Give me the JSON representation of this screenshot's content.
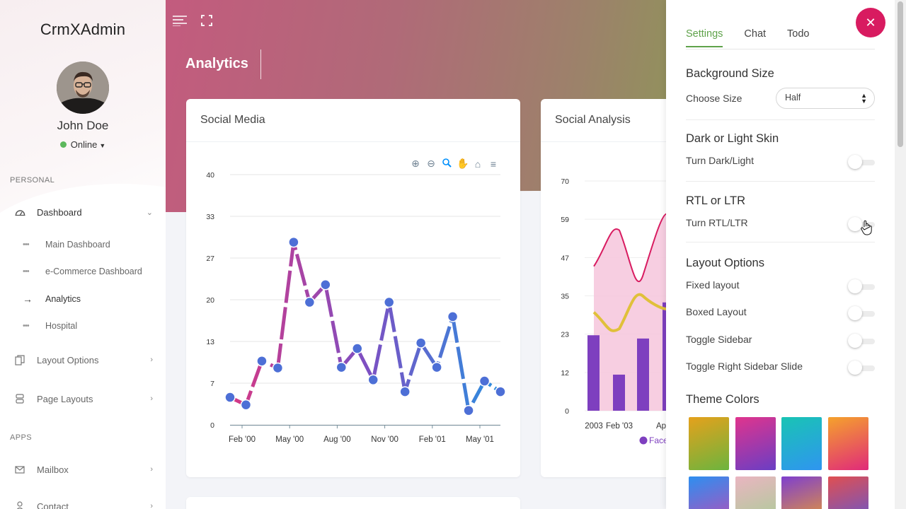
{
  "app": {
    "brand": "CrmXAdmin"
  },
  "user": {
    "name": "John Doe",
    "status": "Online"
  },
  "sidebar": {
    "section_personal": "PERSONAL",
    "section_apps": "APPS",
    "items": [
      {
        "label": "Dashboard",
        "icon": "dashboard-gauge-icon"
      },
      {
        "label": "Layout Options",
        "icon": "copy-icon"
      },
      {
        "label": "Page Layouts",
        "icon": "server-icon"
      },
      {
        "label": "Mailbox",
        "icon": "mail-icon"
      },
      {
        "label": "Contact",
        "icon": "person-icon"
      }
    ],
    "subitems": [
      {
        "label": "Main Dashboard"
      },
      {
        "label": "e-Commerce Dashboard"
      },
      {
        "label": "Analytics",
        "active": true
      },
      {
        "label": "Hospital"
      }
    ]
  },
  "header": {
    "page_title": "Analytics"
  },
  "cards": {
    "social_media": {
      "title": "Social Media"
    },
    "social_analysis": {
      "title": "Social Analysis"
    }
  },
  "chart_data": [
    {
      "type": "line",
      "x_tick_labels": [
        "Feb '00",
        "May '00",
        "Aug '00",
        "Nov '00",
        "Feb '01",
        "May '01"
      ],
      "y_tick_labels": [
        "0",
        "7",
        "13",
        "20",
        "27",
        "33",
        "40"
      ],
      "ylim": [
        0,
        40
      ],
      "grid": true,
      "series": [
        {
          "values": [
            4.4,
            3.2,
            10.2,
            9.1,
            29.2,
            19.6,
            22.4,
            9.2,
            12.2,
            7.2,
            19.6,
            5.3,
            13.1,
            9.2,
            17.3,
            2.3,
            7.0,
            5.3
          ]
        }
      ],
      "colors": [
        "#d63884",
        "#7e4fc2",
        "#2b8fe0"
      ]
    },
    {
      "type": "bar",
      "x_tick_labels": [
        "2003",
        "Feb '03",
        "Ap"
      ],
      "y_tick_labels": [
        "0",
        "12",
        "23",
        "35",
        "47",
        "59",
        "70"
      ],
      "ylim": [
        0,
        70
      ],
      "grid": true,
      "legend_partial": "Face",
      "series": [
        {
          "type": "column",
          "values": [
            23,
            11,
            22,
            33
          ]
        },
        {
          "type": "area",
          "values": [
            44,
            55,
            41,
            60
          ]
        },
        {
          "type": "line",
          "values": [
            30,
            25,
            35,
            31
          ]
        }
      ],
      "colors": [
        "#7e3fbf",
        "#f6c6dc",
        "#e0a12a"
      ]
    }
  ],
  "settings": {
    "tabs": [
      "Settings",
      "Chat",
      "Todo"
    ],
    "close_icon": "close-icon",
    "background_size": {
      "heading": "Background Size",
      "label": "Choose Size",
      "value": "Half"
    },
    "skin": {
      "heading": "Dark or Light Skin",
      "label": "Turn Dark/Light"
    },
    "rtl": {
      "heading": "RTL or LTR",
      "label": "Turn RTL/LTR"
    },
    "layout": {
      "heading": "Layout Options",
      "options": [
        "Fixed layout",
        "Boxed Layout",
        "Toggle Sidebar",
        "Toggle Right Sidebar Slide"
      ]
    },
    "theme": {
      "heading": "Theme Colors",
      "swatches": [
        [
          "#e5a11c",
          "#6cb43e"
        ],
        [
          "#e0348d",
          "#6a3ec4"
        ],
        [
          "#19c4b4",
          "#2f95f0"
        ],
        [
          "#f5a22c",
          "#e02a7a"
        ],
        [
          "#2d8ff0",
          "#c04ab4"
        ],
        [
          "#eab5c1",
          "#a4cf93"
        ],
        [
          "#7e3fcf",
          "#f0a127"
        ],
        [
          "#e04f51",
          "#5b58d8"
        ]
      ]
    }
  }
}
